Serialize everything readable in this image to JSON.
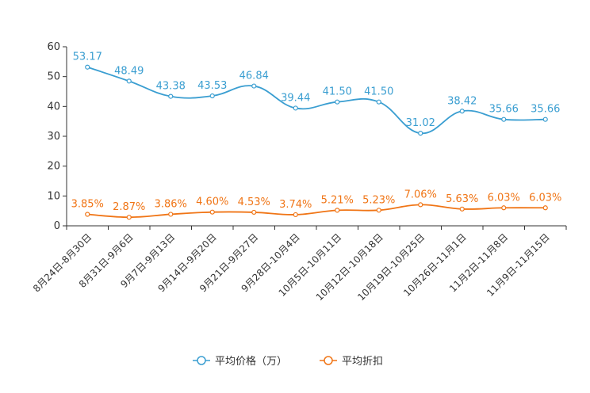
{
  "chart_data": {
    "type": "line",
    "categories": [
      "8月24日-8月30日",
      "8月31日-9月6日",
      "9月7日-9月13日",
      "9月14日-9月20日",
      "9月21日-9月27日",
      "9月28日-10月4日",
      "10月5日-10月11日",
      "10月12日-10月18日",
      "10月19日-10月25日",
      "10月26日-11月1日",
      "11月2日-11月8日",
      "11月9日-11月15日"
    ],
    "series": [
      {
        "name": "平均价格（万）",
        "color": "#3a9ed1",
        "values": [
          53.17,
          48.49,
          43.38,
          43.53,
          46.84,
          39.44,
          41.5,
          41.5,
          31.02,
          38.42,
          35.66,
          35.66
        ],
        "labels": [
          "53.17",
          "48.49",
          "43.38",
          "43.53",
          "46.84",
          "39.44",
          "41.50",
          "41.50",
          "31.02",
          "38.42",
          "35.66",
          "35.66"
        ]
      },
      {
        "name": "平均折扣",
        "color": "#f07516",
        "values": [
          3.85,
          2.87,
          3.86,
          4.6,
          4.53,
          3.74,
          5.21,
          5.23,
          7.06,
          5.63,
          6.03,
          6.03
        ],
        "labels": [
          "3.85%",
          "2.87%",
          "3.86%",
          "4.60%",
          "4.53%",
          "3.74%",
          "5.21%",
          "5.23%",
          "7.06%",
          "5.63%",
          "6.03%",
          "6.03%"
        ]
      }
    ],
    "y_ticks": [
      "0",
      "10",
      "20",
      "30",
      "40",
      "50",
      "60"
    ],
    "ylim": [
      0,
      60
    ],
    "smooth": true,
    "legend_position": "bottom-center"
  }
}
